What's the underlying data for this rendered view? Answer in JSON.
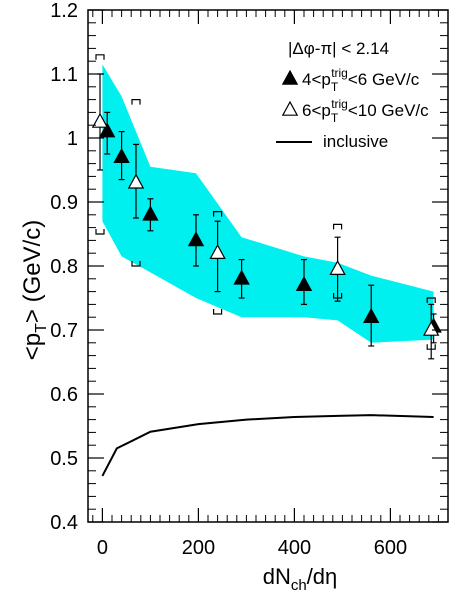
{
  "chart_data": {
    "type": "scatter",
    "xlabel": "dN",
    "xlabel_sub": "ch",
    "xlabel_tail": "/dη",
    "ylabel": "<p",
    "ylabel_sub": "T",
    "ylabel_tail": ">   (GeV/c)",
    "xlim": [
      -30,
      720
    ],
    "ylim": [
      0.4,
      1.2
    ],
    "xticks": [
      0,
      200,
      400,
      600
    ],
    "xtick_labels": [
      "0",
      "200",
      "400",
      "600"
    ],
    "yticks": [
      0.4,
      0.5,
      0.6,
      0.7,
      0.8,
      0.9,
      1.0,
      1.1,
      1.2
    ],
    "ytick_labels": [
      "0.4",
      "0.5",
      "0.6",
      "0.7",
      "0.8",
      "0.9",
      "1",
      "1.1",
      "1.2"
    ],
    "grid": false,
    "legend_position": "top-right",
    "cut_label": "|Δφ-π| < 2.14",
    "band": {
      "color": "#00f0f0",
      "x": [
        0,
        40,
        100,
        195,
        290,
        420,
        490,
        560,
        690
      ],
      "upper": [
        1.115,
        1.065,
        0.955,
        0.945,
        0.845,
        0.815,
        0.805,
        0.785,
        0.76
      ],
      "lower": [
        0.87,
        0.815,
        0.79,
        0.75,
        0.72,
        0.72,
        0.715,
        0.68,
        0.685
      ]
    },
    "series": [
      {
        "name_parts": [
          "4<p",
          "T",
          "trig",
          "<6 GeV/c"
        ],
        "marker": "filled-triangle",
        "points": [
          {
            "x": 10,
            "y": 1.01,
            "lo": 0.975,
            "hi": 1.04
          },
          {
            "x": 40,
            "y": 0.97,
            "lo": 0.935,
            "hi": 1.01
          },
          {
            "x": 100,
            "y": 0.88,
            "lo": 0.855,
            "hi": 0.905
          },
          {
            "x": 195,
            "y": 0.84,
            "lo": 0.8,
            "hi": 0.88
          },
          {
            "x": 290,
            "y": 0.78,
            "lo": 0.75,
            "hi": 0.81
          },
          {
            "x": 420,
            "y": 0.77,
            "lo": 0.74,
            "hi": 0.81
          },
          {
            "x": 560,
            "y": 0.72,
            "lo": 0.675,
            "hi": 0.77
          },
          {
            "x": 690,
            "y": 0.705,
            "lo": 0.68,
            "hi": 0.725
          }
        ]
      },
      {
        "name_parts": [
          "6<p",
          "T",
          "trig",
          "<10 GeV/c"
        ],
        "marker": "open-triangle",
        "points": [
          {
            "x": -5,
            "y": 1.025,
            "lo": 0.95,
            "hi": 1.1,
            "syslo": 0.85,
            "syshi": 1.13
          },
          {
            "x": 70,
            "y": 0.93,
            "lo": 0.875,
            "hi": 0.99,
            "syslo": 0.8,
            "syshi": 1.06
          },
          {
            "x": 240,
            "y": 0.82,
            "lo": 0.76,
            "hi": 0.87,
            "syslo": 0.725,
            "syshi": 0.885
          },
          {
            "x": 490,
            "y": 0.795,
            "lo": 0.745,
            "hi": 0.845,
            "syslo": 0.75,
            "syshi": 0.865
          },
          {
            "x": 685,
            "y": 0.7,
            "lo": 0.655,
            "hi": 0.74,
            "syslo": 0.67,
            "syshi": 0.75
          }
        ]
      },
      {
        "name": "inclusive",
        "marker": "line",
        "x": [
          0,
          30,
          100,
          200,
          300,
          400,
          500,
          560,
          690
        ],
        "y": [
          0.472,
          0.515,
          0.541,
          0.553,
          0.56,
          0.564,
          0.566,
          0.567,
          0.564
        ]
      }
    ]
  }
}
